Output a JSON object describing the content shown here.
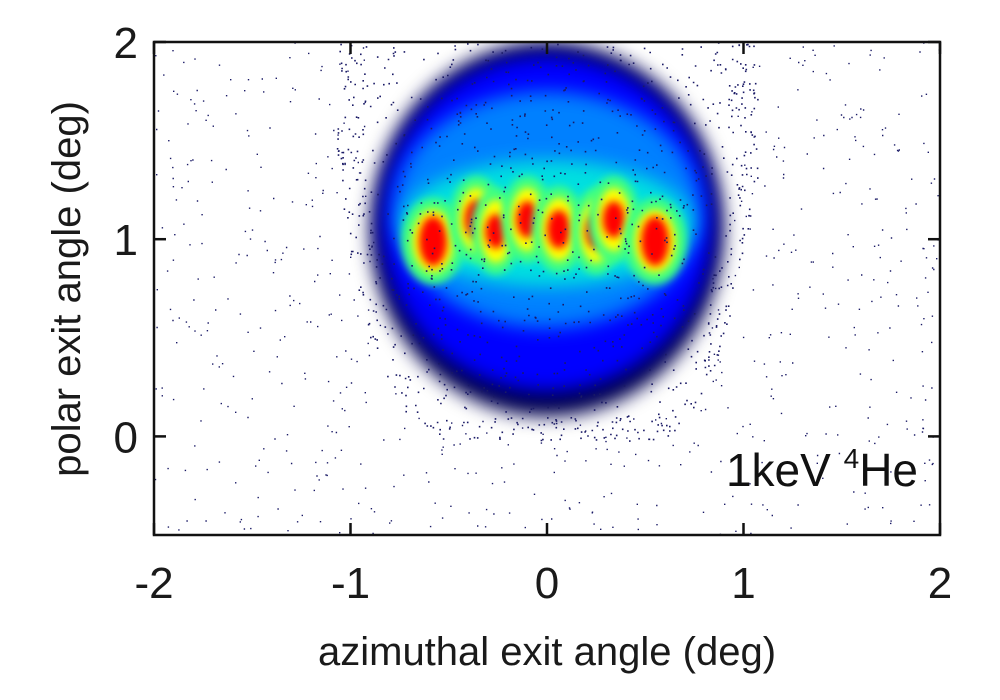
{
  "chart_data": {
    "type": "heatmap",
    "xlabel": "azimuthal exit angle (deg)",
    "ylabel": "polar exit angle (deg)",
    "xlim": [
      -2,
      2
    ],
    "ylim": [
      -0.5,
      2
    ],
    "x_ticks": [
      "-2",
      "-1",
      "0",
      "1",
      "2"
    ],
    "y_ticks": [
      "0",
      "1",
      "2"
    ],
    "x_tick_values": [
      -2,
      -1,
      0,
      1,
      2
    ],
    "y_tick_values": [
      0,
      1,
      2
    ],
    "annotation": {
      "main": "1keV ",
      "superscript": "4",
      "element": "He"
    },
    "colorscale": [
      "#000050",
      "#0000ff",
      "#0080ff",
      "#00e0e0",
      "#40ff80",
      "#c0ff00",
      "#ffff00",
      "#ff0000"
    ],
    "grid": false,
    "envelope": {
      "center_x": 0.0,
      "center_y": 1.0,
      "half_width_x": 0.92,
      "y_min": 0.1,
      "y_max": 2.0
    },
    "maxima": [
      {
        "x": -0.58,
        "y": 0.99,
        "intensity": 1.0
      },
      {
        "x": -0.36,
        "y": 1.1,
        "intensity": 0.75
      },
      {
        "x": -0.26,
        "y": 1.04,
        "intensity": 0.65
      },
      {
        "x": -0.1,
        "y": 1.1,
        "intensity": 0.7
      },
      {
        "x": 0.06,
        "y": 1.05,
        "intensity": 0.75
      },
      {
        "x": 0.25,
        "y": 1.04,
        "intensity": 0.65
      },
      {
        "x": 0.34,
        "y": 1.1,
        "intensity": 0.7
      },
      {
        "x": 0.55,
        "y": 0.99,
        "intensity": 1.0
      }
    ]
  }
}
